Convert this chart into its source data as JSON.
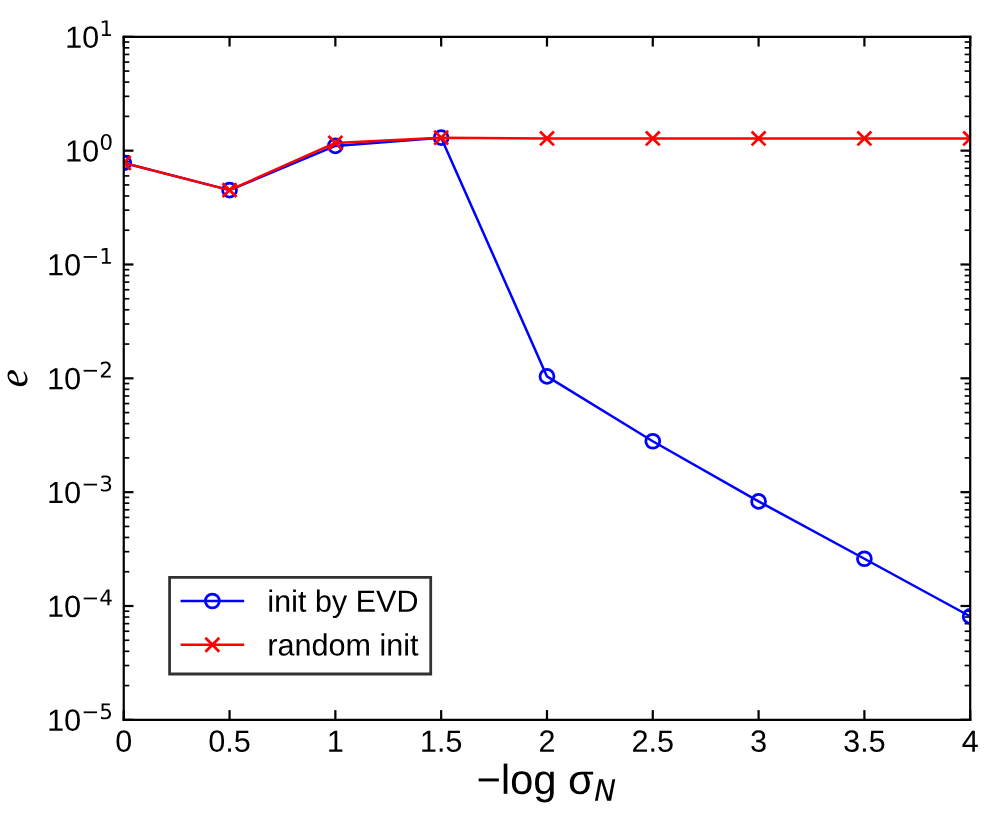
{
  "chart_data": {
    "type": "line",
    "xlabel": "−log σ$_{N}$",
    "ylabel": "e",
    "log": "y",
    "x": [
      0,
      0.5,
      1,
      1.5,
      2,
      2.5,
      3,
      3.5,
      4
    ],
    "series": [
      {
        "name": "init by EVD",
        "color": "#0000ff",
        "marker": "circle",
        "values": [
          0.78,
          0.45,
          1.1,
          1.3,
          0.0104,
          0.0028,
          0.00083,
          0.00026,
          8.1e-05
        ]
      },
      {
        "name": "random init",
        "color": "#ff0000",
        "marker": "cross",
        "values": [
          0.78,
          0.45,
          1.17,
          1.3,
          1.28,
          1.28,
          1.28,
          1.28,
          1.28
        ]
      }
    ],
    "xlim": [
      0,
      4
    ],
    "xticks": [
      0,
      0.5,
      1,
      1.5,
      2,
      2.5,
      3,
      3.5,
      4
    ],
    "ylim": [
      1e-05,
      10
    ],
    "yticks": [
      {
        "value": 1e-05,
        "label": "10$^{−5}$"
      },
      {
        "value": 0.0001,
        "label": "10$^{−4}$"
      },
      {
        "value": 0.001,
        "label": "10$^{−3}$"
      },
      {
        "value": 0.01,
        "label": "10$^{−2}$"
      },
      {
        "value": 0.1,
        "label": "10$^{−1}$"
      },
      {
        "value": 1,
        "label": "10$^{0}$"
      },
      {
        "value": 10,
        "label": "10$^{1}$"
      }
    ],
    "legend": "bottom left",
    "grid": false,
    "line_style": "solid"
  }
}
